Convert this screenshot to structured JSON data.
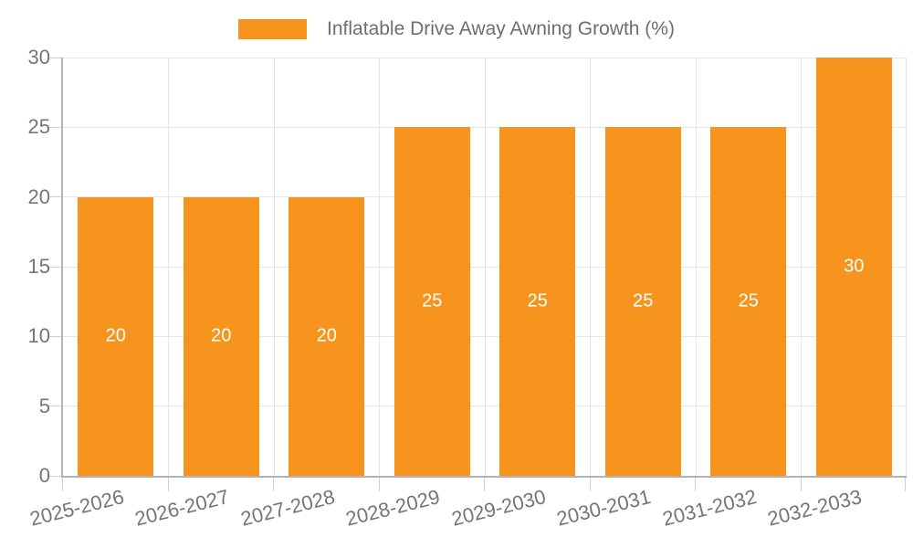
{
  "chart_data": {
    "type": "bar",
    "legend": "Inflatable Drive Away Awning Growth (%)",
    "categories": [
      "2025-2026",
      "2026-2027",
      "2027-2028",
      "2028-2029",
      "2029-2030",
      "2030-2031",
      "2031-2032",
      "2032-2033"
    ],
    "values": [
      20,
      20,
      20,
      25,
      25,
      25,
      25,
      30
    ],
    "bar_labels": [
      "20",
      "20",
      "20",
      "25",
      "25",
      "25",
      "25",
      "30"
    ],
    "yticks": [
      0,
      5,
      10,
      15,
      20,
      25,
      30
    ],
    "ytick_labels": [
      "0",
      "5",
      "10",
      "15",
      "20",
      "25",
      "30"
    ],
    "ylim": [
      0,
      30
    ],
    "xlabel": "",
    "ylabel": "",
    "grid": "on",
    "legend_position": "top-center",
    "colors": {
      "bar": "#F7941E",
      "grid_line": "#E6E6E6",
      "axis_line": "#B3B3B3",
      "tick_line": "#D0D0D0",
      "axis_text": "#757575",
      "legend_text": "#6E6E6E",
      "bar_label_text": "#FFFFFF",
      "background": "#FFFFFF"
    }
  }
}
